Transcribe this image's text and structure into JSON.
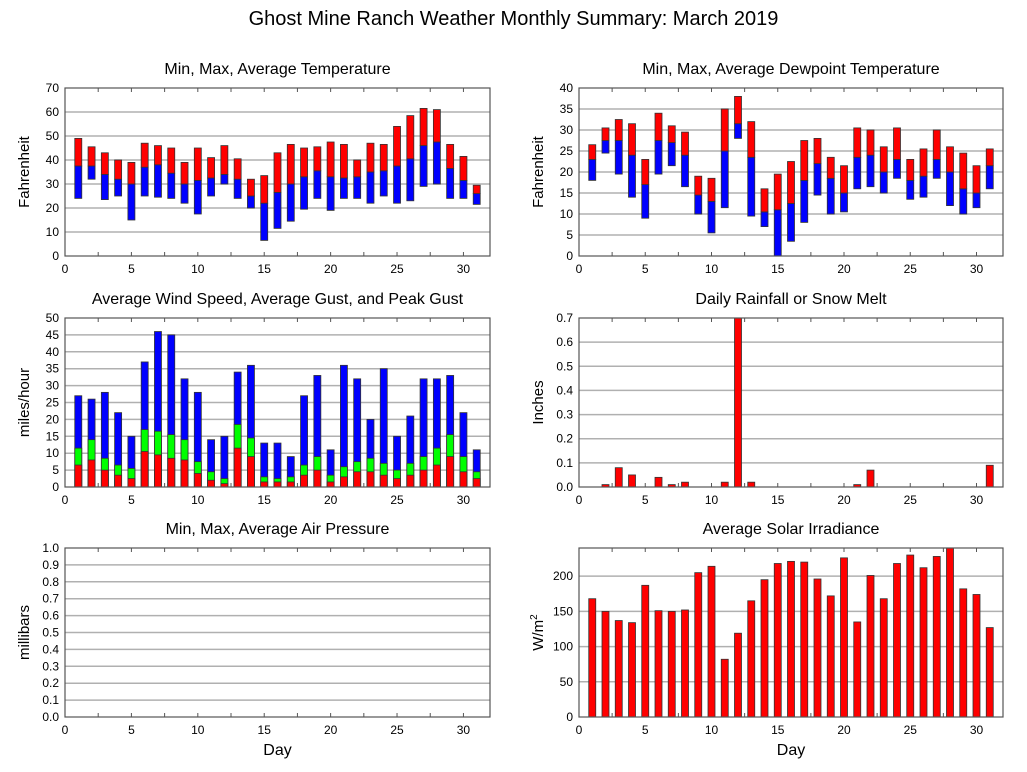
{
  "title": "Ghost Mine Ranch Weather Monthly Summary: March 2019",
  "colors": {
    "red": "#ff0000",
    "blue": "#0000ff",
    "green": "#00ff00",
    "grid": "#b0b0b0",
    "axis": "#555555"
  },
  "chart_data": [
    {
      "id": "temp",
      "type": "bar",
      "subtype": "floating-range",
      "title": "Min, Max, Average Temperature",
      "xlabel": "",
      "ylabel": "Fahrenheit",
      "xlim": [
        0,
        32
      ],
      "ylim": [
        0,
        70
      ],
      "yticks": [
        0,
        10,
        20,
        30,
        40,
        50,
        60,
        70
      ],
      "ytick_labels": [
        "0",
        "10",
        "20",
        "30",
        "40",
        "50",
        "60",
        "70"
      ],
      "xticks": [
        0,
        5,
        10,
        15,
        20,
        25,
        30
      ],
      "xtick_labels": [
        "0",
        "5",
        "10",
        "15",
        "20",
        "25",
        "30"
      ],
      "grid": true,
      "x": [
        1,
        2,
        3,
        4,
        5,
        6,
        7,
        8,
        9,
        10,
        11,
        12,
        13,
        14,
        15,
        16,
        17,
        18,
        19,
        20,
        21,
        22,
        23,
        24,
        25,
        26,
        27,
        28,
        29,
        30,
        31
      ],
      "series": [
        {
          "name": "Min",
          "values": [
            24,
            32,
            23.5,
            25,
            15,
            25,
            24.5,
            24,
            22,
            17.5,
            25,
            30,
            24,
            20,
            6.5,
            11.5,
            14.5,
            19.5,
            24,
            19,
            24,
            24,
            22,
            25,
            22,
            23,
            29,
            30,
            24,
            24,
            21.5
          ]
        },
        {
          "name": "Average",
          "values": [
            37.5,
            37.5,
            34,
            32,
            30,
            37,
            38,
            34.5,
            30,
            31.5,
            32.5,
            34,
            32,
            25,
            22,
            26.5,
            30,
            33,
            35.5,
            33,
            32.5,
            33,
            35,
            35.5,
            37.5,
            40.5,
            46,
            47.5,
            36.5,
            31.5,
            26
          ]
        },
        {
          "name": "Max",
          "values": [
            49,
            45.5,
            43,
            40,
            39,
            47,
            46,
            45,
            39,
            45,
            41,
            46,
            40.5,
            32,
            33.5,
            43,
            46.5,
            45,
            45.5,
            47.5,
            46.5,
            40,
            47,
            46.5,
            54,
            58.5,
            61.5,
            61,
            46.5,
            41.5,
            29.5
          ]
        }
      ]
    },
    {
      "id": "dew",
      "type": "bar",
      "subtype": "floating-range",
      "title": "Min, Max, Average Dewpoint Temperature",
      "xlabel": "",
      "ylabel": "Fahrenheit",
      "xlim": [
        0,
        32
      ],
      "ylim": [
        0,
        40
      ],
      "yticks": [
        0,
        5,
        10,
        15,
        20,
        25,
        30,
        35,
        40
      ],
      "ytick_labels": [
        "0",
        "5",
        "10",
        "15",
        "20",
        "25",
        "30",
        "35",
        "40"
      ],
      "xticks": [
        0,
        5,
        10,
        15,
        20,
        25,
        30
      ],
      "xtick_labels": [
        "0",
        "5",
        "10",
        "15",
        "20",
        "25",
        "30"
      ],
      "grid": true,
      "x": [
        1,
        2,
        3,
        4,
        5,
        6,
        7,
        8,
        9,
        10,
        11,
        12,
        13,
        14,
        15,
        16,
        17,
        18,
        19,
        20,
        21,
        22,
        23,
        24,
        25,
        26,
        27,
        28,
        29,
        30,
        31
      ],
      "series": [
        {
          "name": "Min",
          "values": [
            18,
            24.5,
            19.5,
            14,
            9,
            19.5,
            21.5,
            16.5,
            10,
            5.5,
            11.5,
            28,
            9.5,
            7,
            0,
            3.5,
            8,
            14.5,
            10,
            10.5,
            16,
            16.5,
            15,
            18.5,
            13.5,
            14,
            18.5,
            12,
            10,
            11.5,
            16
          ]
        },
        {
          "name": "Average",
          "values": [
            23,
            27.5,
            27.5,
            24,
            17,
            27.5,
            27,
            24,
            14.5,
            13,
            25,
            31.5,
            23.5,
            10.5,
            11,
            12.5,
            18,
            22,
            18.5,
            15,
            23.5,
            24,
            20,
            23,
            18,
            19,
            23,
            20,
            16,
            15,
            21.5
          ]
        },
        {
          "name": "Max",
          "values": [
            26.5,
            30.5,
            32.5,
            31.5,
            23,
            34,
            31,
            29.5,
            19,
            18.5,
            35,
            38,
            32,
            16,
            19.5,
            22.5,
            27.5,
            28,
            23.5,
            21.5,
            30.5,
            30,
            26,
            30.5,
            23,
            25.5,
            30,
            26,
            24.5,
            21.5,
            25.5
          ]
        }
      ]
    },
    {
      "id": "wind",
      "type": "bar",
      "subtype": "overlaid",
      "title": "Average Wind Speed, Average Gust, and Peak Gust",
      "xlabel": "",
      "ylabel": "miles/hour",
      "xlim": [
        0,
        32
      ],
      "ylim": [
        0,
        50
      ],
      "yticks": [
        0,
        5,
        10,
        15,
        20,
        25,
        30,
        35,
        40,
        45,
        50
      ],
      "ytick_labels": [
        "0",
        "5",
        "10",
        "15",
        "20",
        "25",
        "30",
        "35",
        "40",
        "45",
        "50"
      ],
      "xticks": [
        0,
        5,
        10,
        15,
        20,
        25,
        30
      ],
      "xtick_labels": [
        "0",
        "5",
        "10",
        "15",
        "20",
        "25",
        "30"
      ],
      "grid": true,
      "x": [
        1,
        2,
        3,
        4,
        5,
        6,
        7,
        8,
        9,
        10,
        11,
        12,
        13,
        14,
        15,
        16,
        17,
        18,
        19,
        20,
        21,
        22,
        23,
        24,
        25,
        26,
        27,
        28,
        29,
        30,
        31
      ],
      "series": [
        {
          "name": "Peak Gust",
          "color": "blue",
          "values": [
            27,
            26,
            28,
            22,
            15,
            37,
            46,
            45,
            32,
            28,
            14,
            15,
            34,
            36,
            13,
            13,
            9,
            27,
            33,
            11,
            36,
            32,
            20,
            35,
            15,
            21,
            32,
            32,
            33,
            22,
            11
          ]
        },
        {
          "name": "Average Gust",
          "color": "green",
          "values": [
            11.5,
            14,
            8.5,
            6.5,
            5.5,
            17,
            16.5,
            15.5,
            14,
            7.5,
            4.5,
            2.5,
            18.5,
            14.5,
            3,
            2.5,
            3,
            6.5,
            9,
            3.5,
            6,
            7.5,
            8.5,
            7,
            5,
            7,
            9,
            11.5,
            15.5,
            9,
            4.5
          ]
        },
        {
          "name": "Average Wind Speed",
          "color": "red",
          "values": [
            6.5,
            8,
            5,
            3.5,
            2.5,
            10.5,
            9.5,
            8.5,
            8,
            4,
            2,
            1,
            11.5,
            9,
            1.5,
            1.5,
            1.5,
            3.5,
            5,
            1.5,
            3,
            4.5,
            4.5,
            3.5,
            2.5,
            3.5,
            5,
            6.5,
            9,
            4.5,
            2.5
          ]
        }
      ]
    },
    {
      "id": "rain",
      "type": "bar",
      "title": "Daily Rainfall or Snow Melt",
      "xlabel": "",
      "ylabel": "Inches",
      "xlim": [
        0,
        32
      ],
      "ylim": [
        0,
        0.7
      ],
      "yticks": [
        0,
        0.1,
        0.2,
        0.3,
        0.4,
        0.5,
        0.6,
        0.7
      ],
      "ytick_labels": [
        "0.0",
        "0.1",
        "0.2",
        "0.3",
        "0.4",
        "0.5",
        "0.6",
        "0.7"
      ],
      "xticks": [
        0,
        5,
        10,
        15,
        20,
        25,
        30
      ],
      "xtick_labels": [
        "0",
        "5",
        "10",
        "15",
        "20",
        "25",
        "30"
      ],
      "grid": true,
      "x": [
        1,
        2,
        3,
        4,
        5,
        6,
        7,
        8,
        9,
        10,
        11,
        12,
        13,
        14,
        15,
        16,
        17,
        18,
        19,
        20,
        21,
        22,
        23,
        24,
        25,
        26,
        27,
        28,
        29,
        30,
        31
      ],
      "values": [
        0,
        0.01,
        0.08,
        0.05,
        0,
        0.04,
        0.01,
        0.02,
        0,
        0,
        0.02,
        0.7,
        0.02,
        0,
        0,
        0,
        0,
        0,
        0,
        0,
        0.01,
        0.07,
        0,
        0,
        0,
        0,
        0,
        0,
        0,
        0,
        0.09
      ]
    },
    {
      "id": "pressure",
      "type": "bar",
      "subtype": "floating-range",
      "title": "Min, Max, Average Air Pressure",
      "xlabel": "Day",
      "ylabel": "millibars",
      "xlim": [
        0,
        32
      ],
      "ylim": [
        0,
        1.0
      ],
      "yticks": [
        0,
        0.1,
        0.2,
        0.3,
        0.4,
        0.5,
        0.6,
        0.7,
        0.8,
        0.9,
        1.0
      ],
      "ytick_labels": [
        "0.0",
        "0.1",
        "0.2",
        "0.3",
        "0.4",
        "0.5",
        "0.6",
        "0.7",
        "0.8",
        "0.9",
        "1.0"
      ],
      "xticks": [
        0,
        5,
        10,
        15,
        20,
        25,
        30
      ],
      "xtick_labels": [
        "0",
        "5",
        "10",
        "15",
        "20",
        "25",
        "30"
      ],
      "grid": true,
      "x": [],
      "series": []
    },
    {
      "id": "solar",
      "type": "bar",
      "title": "Average Solar Irradiance",
      "xlabel": "Day",
      "ylabel": "W/m",
      "ylabel_sup": "2",
      "xlim": [
        0,
        32
      ],
      "ylim": [
        0,
        240
      ],
      "yticks": [
        0,
        50,
        100,
        150,
        200
      ],
      "ytick_labels": [
        "0",
        "50",
        "100",
        "150",
        "200"
      ],
      "xticks": [
        0,
        5,
        10,
        15,
        20,
        25,
        30
      ],
      "xtick_labels": [
        "0",
        "5",
        "10",
        "15",
        "20",
        "25",
        "30"
      ],
      "grid": true,
      "x": [
        1,
        2,
        3,
        4,
        5,
        6,
        7,
        8,
        9,
        10,
        11,
        12,
        13,
        14,
        15,
        16,
        17,
        18,
        19,
        20,
        21,
        22,
        23,
        24,
        25,
        26,
        27,
        28,
        29,
        30,
        31
      ],
      "values": [
        168,
        150,
        137,
        134,
        187,
        151,
        150,
        152,
        205,
        214,
        82,
        119,
        165,
        195,
        218,
        221,
        220,
        196,
        172,
        226,
        135,
        201,
        168,
        218,
        230,
        212,
        228,
        240,
        182,
        174,
        127
      ]
    }
  ]
}
